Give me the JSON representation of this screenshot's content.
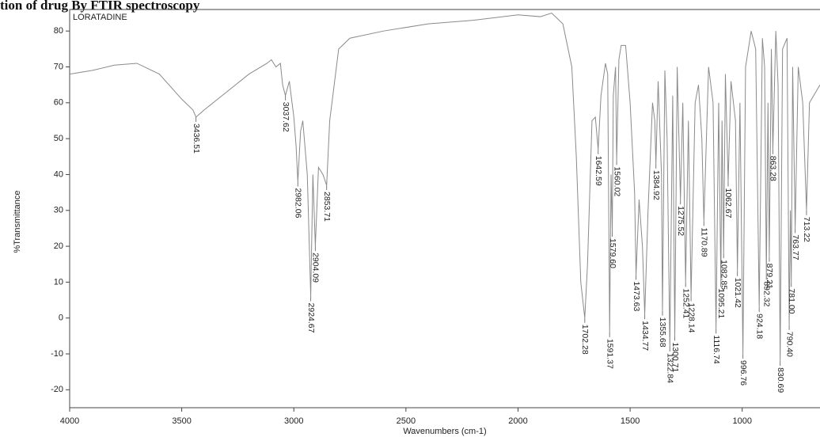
{
  "chart_data": {
    "type": "line",
    "title": "tion of drug By FTIR spectroscopy",
    "sample_label": "LORATADINE",
    "x_label": "Wavenumbers (cm-1)",
    "y_label": "%Transmittance",
    "xlim": [
      4000,
      653
    ],
    "ylim": [
      -25,
      86
    ],
    "xticks": [
      4000,
      3500,
      3000,
      2500,
      2000,
      1500,
      1000
    ],
    "yticks": [
      -20,
      -10,
      0,
      10,
      20,
      30,
      40,
      50,
      60,
      70,
      80
    ],
    "series": [
      {
        "color": "#8a8a8a",
        "x": [
          4000,
          3900,
          3800,
          3700,
          3600,
          3500,
          3450,
          3436.51,
          3400,
          3300,
          3200,
          3120,
          3100,
          3080,
          3060,
          3050,
          3037.62,
          3020,
          3000,
          2990,
          2982.06,
          2970,
          2960,
          2940,
          2924.67,
          2915,
          2904.09,
          2890,
          2870,
          2853.71,
          2840,
          2800,
          2750,
          2600,
          2400,
          2200,
          2000,
          1900,
          1850,
          1800,
          1760,
          1740,
          1720,
          1702.28,
          1690,
          1670,
          1655,
          1642.59,
          1630,
          1610,
          1600,
          1591.37,
          1585,
          1579.6,
          1575,
          1565,
          1560.02,
          1550,
          1540,
          1520,
          1500,
          1480,
          1473.63,
          1460,
          1445,
          1434.77,
          1420,
          1400,
          1390,
          1384.92,
          1375,
          1360,
          1355.68,
          1345,
          1335,
          1322.84,
          1310,
          1300.71,
          1290,
          1275.52,
          1265,
          1252.41,
          1240,
          1228.14,
          1210,
          1195,
          1180,
          1170.89,
          1150,
          1130,
          1116.74,
          1105,
          1095.21,
          1090,
          1082.85,
          1075,
          1062.67,
          1050,
          1030,
          1021.42,
          1010,
          996.76,
          985,
          960,
          940,
          924.18,
          910,
          900,
          892.32,
          885,
          879.21,
          870,
          863.28,
          850,
          840,
          830.69,
          820,
          800,
          790.4,
          785,
          781,
          775,
          763.77,
          750,
          730,
          713.22,
          700,
          653
        ],
        "values": [
          68,
          69,
          70.5,
          71,
          68,
          61,
          58,
          56,
          58,
          63,
          68,
          71,
          72,
          70,
          71,
          65,
          62,
          66,
          56,
          48,
          38,
          52,
          55,
          40,
          6,
          40,
          20,
          42,
          40,
          37,
          55,
          75,
          78,
          80,
          82,
          83,
          84.5,
          84,
          85,
          82,
          70,
          45,
          10,
          0,
          15,
          55,
          56,
          47,
          62,
          71,
          68,
          -4,
          40,
          24,
          62,
          70,
          44,
          72,
          76,
          76,
          60,
          35,
          12,
          33,
          20,
          1,
          30,
          60,
          55,
          43,
          66,
          40,
          2,
          69,
          50,
          -8,
          62,
          -5,
          70,
          33,
          60,
          10,
          55,
          6,
          60,
          65,
          50,
          27,
          70,
          60,
          -3,
          60,
          10,
          55,
          18,
          68,
          38,
          66,
          55,
          13,
          60,
          -10,
          70,
          80,
          75,
          3,
          78,
          70,
          12,
          60,
          17,
          75,
          47,
          80,
          65,
          -12,
          75,
          78,
          -2,
          30,
          10,
          70,
          25,
          70,
          60,
          30,
          60,
          65
        ]
      }
    ],
    "peak_x": [
      3436.51,
      3037.62,
      2982.06,
      2924.67,
      2904.09,
      2853.71,
      1702.28,
      1642.59,
      1591.37,
      1579.6,
      1560.02,
      1473.63,
      1434.77,
      1384.92,
      1355.68,
      1322.84,
      1300.71,
      1275.52,
      1252.41,
      1228.14,
      1170.89,
      1116.74,
      1095.21,
      1082.85,
      1062.67,
      1021.42,
      996.76,
      924.18,
      892.32,
      879.21,
      863.28,
      830.69,
      790.4,
      781,
      763.77,
      713.22
    ],
    "peak_y": [
      56,
      62,
      38,
      6,
      20,
      37,
      0,
      47,
      -4,
      24,
      44,
      12,
      1,
      43,
      2,
      -8,
      -5,
      33,
      10,
      6,
      27,
      -3,
      10,
      18,
      38,
      13,
      -10,
      3,
      12,
      17,
      47,
      -12,
      -2,
      10,
      25,
      30
    ],
    "peak_labels": [
      "3436.51",
      "3037.62",
      "2982.06",
      "2924.67",
      "2904.09",
      "2853.71",
      "1702.28",
      "1642.59",
      "1591.37",
      "1579.60",
      "1560.02",
      "1473.63",
      "1434.77",
      "1384.92",
      "1355.68",
      "1322.84",
      "1300.71",
      "1275.52",
      "1252.41",
      "1228.14",
      "1170.89",
      "1116.74",
      "1095.21",
      "1082.85",
      "1062.67",
      "1021.42",
      "996.76",
      "924.18",
      "892.32",
      "879.21",
      "863.28",
      "830.69",
      "790.40",
      "781.00",
      "763.77",
      "713.22"
    ]
  }
}
